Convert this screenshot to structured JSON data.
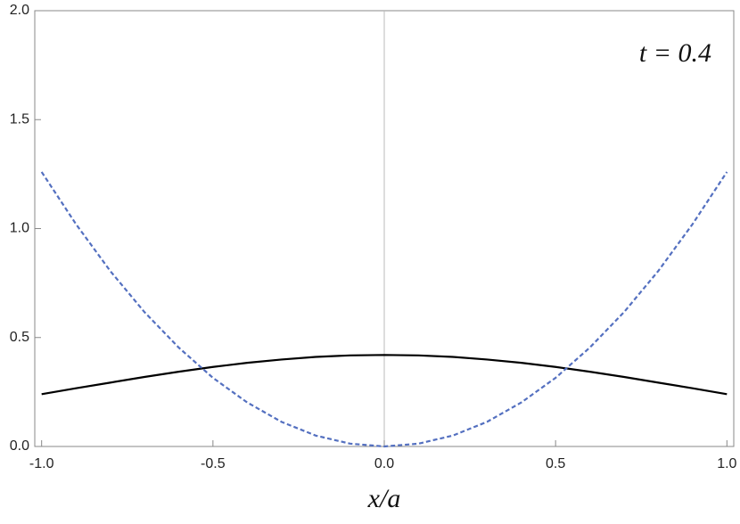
{
  "chart_data": {
    "type": "line",
    "annotation": "t = 0.4",
    "x_label": "x/a",
    "x": [
      -1.0,
      -0.9,
      -0.8,
      -0.7,
      -0.6,
      -0.5,
      -0.4,
      -0.3,
      -0.2,
      -0.1,
      0.0,
      0.1,
      0.2,
      0.3,
      0.4,
      0.5,
      0.6,
      0.7,
      0.8,
      0.9,
      1.0
    ],
    "series": [
      {
        "color": "#000000",
        "dashed": false,
        "values": [
          0.24,
          0.267,
          0.293,
          0.319,
          0.343,
          0.365,
          0.384,
          0.399,
          0.411,
          0.418,
          0.42,
          0.418,
          0.411,
          0.399,
          0.384,
          0.365,
          0.343,
          0.319,
          0.293,
          0.267,
          0.24
        ]
      },
      {
        "color": "#5470c0",
        "dashed": true,
        "values": [
          1.26,
          1.021,
          0.806,
          0.617,
          0.454,
          0.315,
          0.202,
          0.113,
          0.05,
          0.013,
          0.0,
          0.013,
          0.05,
          0.113,
          0.202,
          0.315,
          0.454,
          0.617,
          0.806,
          1.021,
          1.26
        ]
      }
    ],
    "xlim": [
      -1.02,
      1.02
    ],
    "ylim": [
      0,
      2
    ],
    "xticks": [
      {
        "value": -1,
        "label": "-1.0"
      },
      {
        "value": -0.5,
        "label": "-0.5"
      },
      {
        "value": 0,
        "label": "0.0"
      },
      {
        "value": 0.5,
        "label": "0.5"
      },
      {
        "value": 1,
        "label": "1.0"
      }
    ],
    "yticks": [
      {
        "value": 0,
        "label": "0.0"
      },
      {
        "value": 0.5,
        "label": "0.5"
      },
      {
        "value": 1,
        "label": "1.0"
      },
      {
        "value": 1.5,
        "label": "1.5"
      },
      {
        "value": 2,
        "label": "2.0"
      }
    ]
  }
}
